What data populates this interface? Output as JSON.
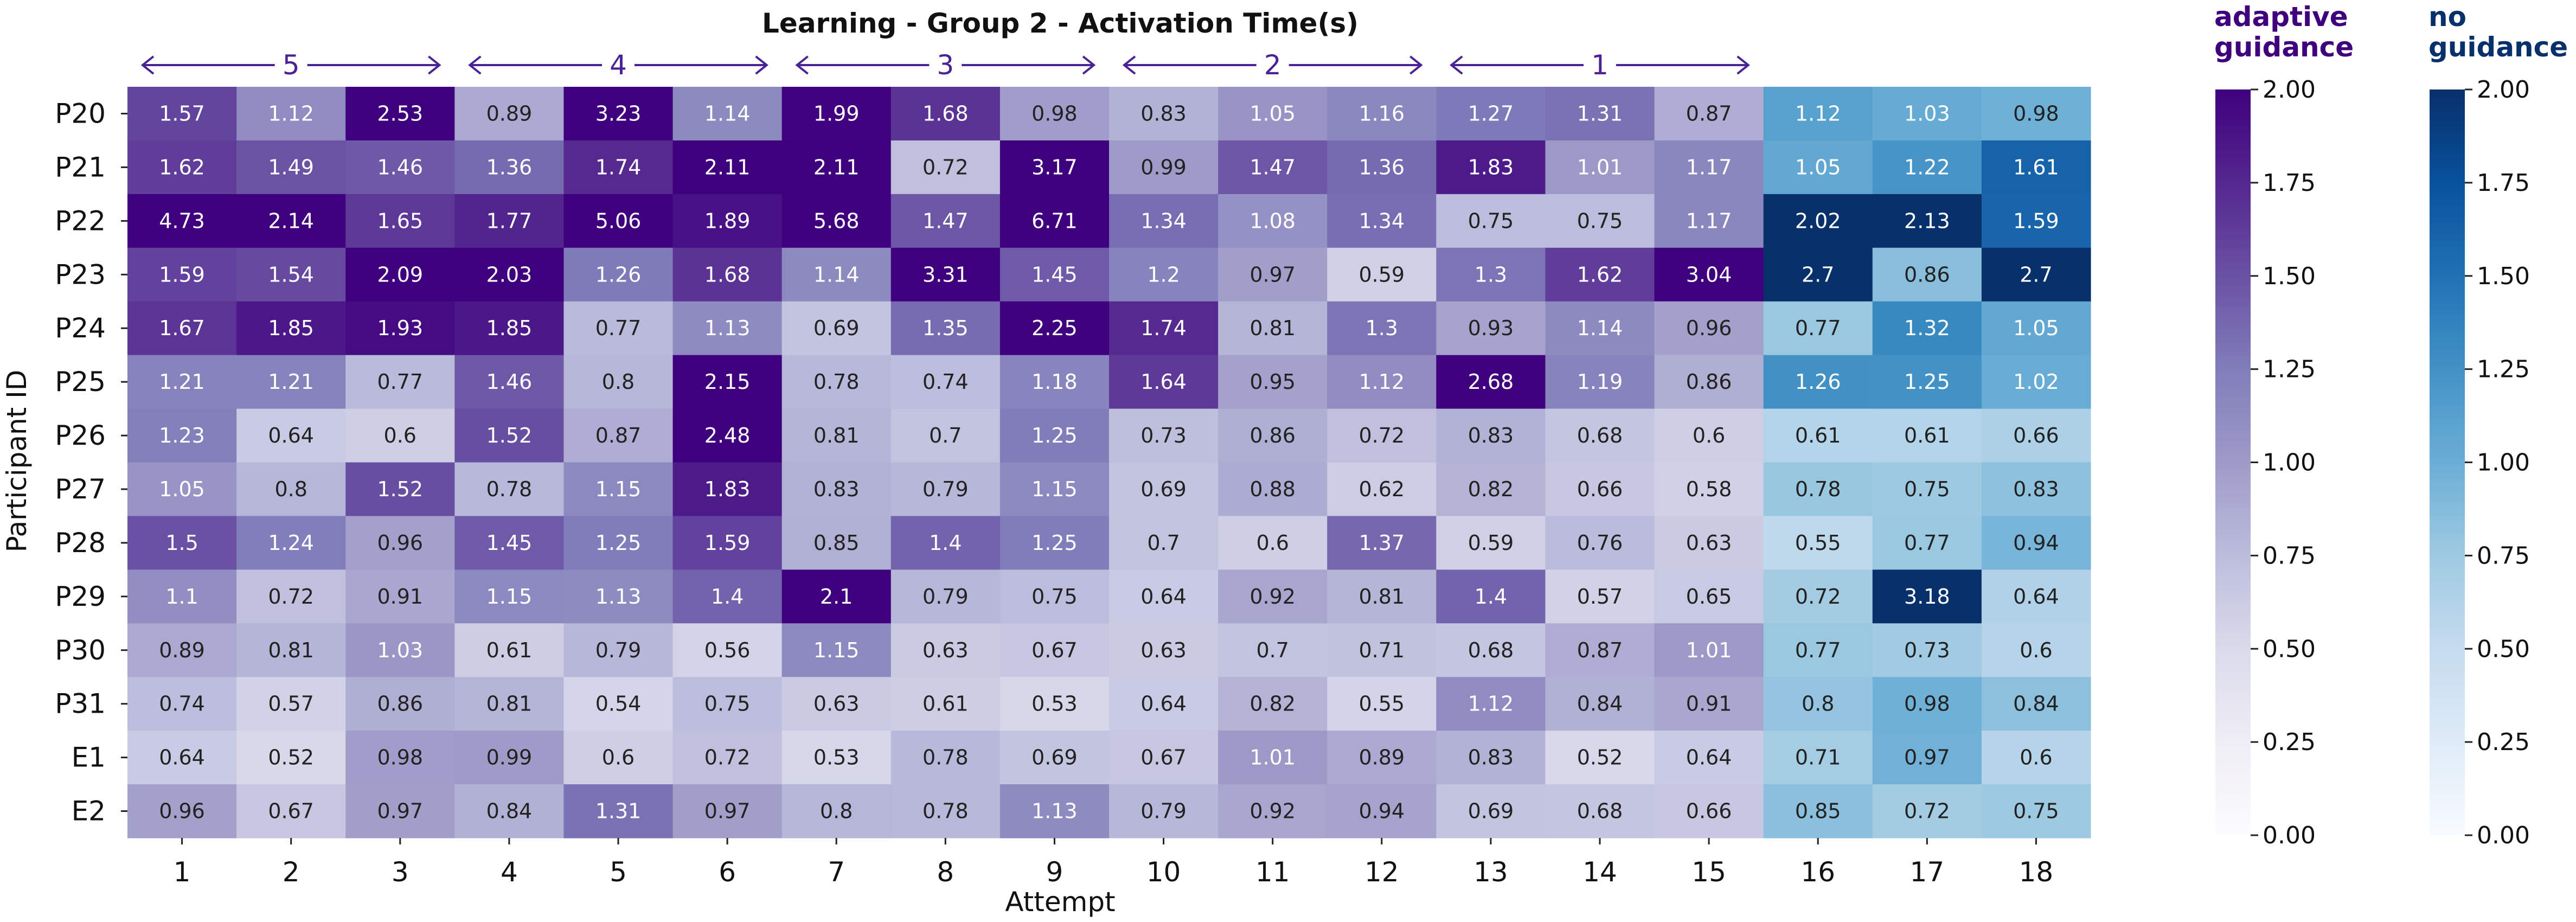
{
  "chart_data": {
    "type": "heatmap",
    "title": "Learning - Group 2 - Activation Time(s)",
    "xlabel": "Attempt",
    "ylabel": "Participant ID",
    "x_ticks": [
      "1",
      "2",
      "3",
      "4",
      "5",
      "6",
      "7",
      "8",
      "9",
      "10",
      "11",
      "12",
      "13",
      "14",
      "15",
      "16",
      "17",
      "18"
    ],
    "y_ticks": [
      "P20",
      "P21",
      "P22",
      "P23",
      "P24",
      "P25",
      "P26",
      "P27",
      "P28",
      "P29",
      "P30",
      "P31",
      "E1",
      "E2"
    ],
    "groups": [
      {
        "label": "5",
        "from_attempt": 1,
        "to_attempt": 3
      },
      {
        "label": "4",
        "from_attempt": 4,
        "to_attempt": 6
      },
      {
        "label": "3",
        "from_attempt": 7,
        "to_attempt": 9
      },
      {
        "label": "2",
        "from_attempt": 10,
        "to_attempt": 12
      },
      {
        "label": "1",
        "from_attempt": 13,
        "to_attempt": 15
      }
    ],
    "adaptive_attempts": 15,
    "values": [
      [
        1.57,
        1.12,
        2.53,
        0.89,
        3.23,
        1.14,
        1.99,
        1.68,
        0.98,
        0.83,
        1.05,
        1.16,
        1.27,
        1.31,
        0.87,
        1.12,
        1.03,
        0.98
      ],
      [
        1.62,
        1.49,
        1.46,
        1.36,
        1.74,
        2.11,
        2.11,
        0.72,
        3.17,
        0.99,
        1.47,
        1.36,
        1.83,
        1.01,
        1.17,
        1.05,
        1.22,
        1.61
      ],
      [
        4.73,
        2.14,
        1.65,
        1.77,
        5.06,
        1.89,
        5.68,
        1.47,
        6.71,
        1.34,
        1.08,
        1.34,
        0.75,
        0.75,
        1.17,
        2.02,
        2.13,
        1.59
      ],
      [
        1.59,
        1.54,
        2.09,
        2.03,
        1.26,
        1.68,
        1.14,
        3.31,
        1.45,
        1.2,
        0.97,
        0.59,
        1.3,
        1.62,
        3.04,
        2.7,
        0.86,
        2.7
      ],
      [
        1.67,
        1.85,
        1.93,
        1.85,
        0.77,
        1.13,
        0.69,
        1.35,
        2.25,
        1.74,
        0.81,
        1.3,
        0.93,
        1.14,
        0.96,
        0.77,
        1.32,
        1.05
      ],
      [
        1.21,
        1.21,
        0.77,
        1.46,
        0.8,
        2.15,
        0.78,
        0.74,
        1.18,
        1.64,
        0.95,
        1.12,
        2.68,
        1.19,
        0.86,
        1.26,
        1.25,
        1.02
      ],
      [
        1.23,
        0.64,
        0.6,
        1.52,
        0.87,
        2.48,
        0.81,
        0.7,
        1.25,
        0.73,
        0.86,
        0.72,
        0.83,
        0.68,
        0.6,
        0.61,
        0.61,
        0.66
      ],
      [
        1.05,
        0.8,
        1.52,
        0.78,
        1.15,
        1.83,
        0.83,
        0.79,
        1.15,
        0.69,
        0.88,
        0.62,
        0.82,
        0.66,
        0.58,
        0.78,
        0.75,
        0.83
      ],
      [
        1.5,
        1.24,
        0.96,
        1.45,
        1.25,
        1.59,
        0.85,
        1.4,
        1.25,
        0.7,
        0.6,
        1.37,
        0.59,
        0.76,
        0.63,
        0.55,
        0.77,
        0.94
      ],
      [
        1.1,
        0.72,
        0.91,
        1.15,
        1.13,
        1.4,
        2.1,
        0.79,
        0.75,
        0.64,
        0.92,
        0.81,
        1.4,
        0.57,
        0.65,
        0.72,
        3.18,
        0.64
      ],
      [
        0.89,
        0.81,
        1.03,
        0.61,
        0.79,
        0.56,
        1.15,
        0.63,
        0.67,
        0.63,
        0.7,
        0.71,
        0.68,
        0.87,
        1.01,
        0.77,
        0.73,
        0.6
      ],
      [
        0.74,
        0.57,
        0.86,
        0.81,
        0.54,
        0.75,
        0.63,
        0.61,
        0.53,
        0.64,
        0.82,
        0.55,
        1.12,
        0.84,
        0.91,
        0.8,
        0.98,
        0.84
      ],
      [
        0.64,
        0.52,
        0.98,
        0.99,
        0.6,
        0.72,
        0.53,
        0.78,
        0.69,
        0.67,
        1.01,
        0.89,
        0.83,
        0.52,
        0.64,
        0.71,
        0.97,
        0.6
      ],
      [
        0.96,
        0.67,
        0.97,
        0.84,
        1.31,
        0.97,
        0.8,
        0.78,
        1.13,
        0.79,
        0.92,
        0.94,
        0.69,
        0.68,
        0.66,
        0.85,
        0.72,
        0.75
      ]
    ],
    "colorbars": [
      {
        "title_lines": [
          "adaptive",
          "guidance"
        ],
        "range": [
          0,
          2
        ],
        "ticks": [
          "0.00",
          "0.25",
          "0.50",
          "0.75",
          "1.00",
          "1.25",
          "1.50",
          "1.75",
          "2.00"
        ],
        "title_color": "#3f007d"
      },
      {
        "title_lines": [
          "no",
          "guidance"
        ],
        "range": [
          0,
          2
        ],
        "ticks": [
          "0.00",
          "0.25",
          "0.50",
          "0.75",
          "1.00",
          "1.25",
          "1.50",
          "1.75",
          "2.00"
        ],
        "title_color": "#08306b"
      }
    ]
  }
}
